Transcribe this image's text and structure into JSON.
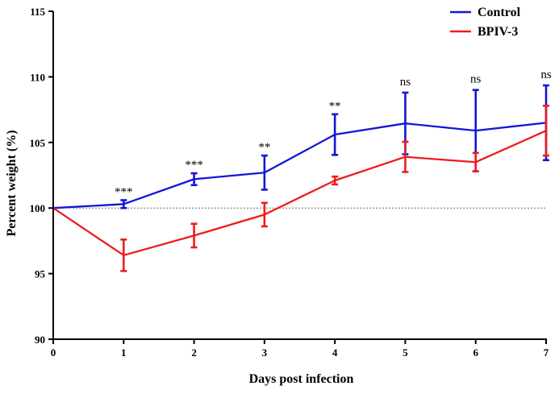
{
  "chart_data": {
    "type": "line",
    "title": "",
    "xlabel": "Days post infection",
    "ylabel": "Percent weight (%)",
    "xlim": [
      0,
      7
    ],
    "ylim": [
      90,
      115
    ],
    "xticks": [
      "0",
      "1",
      "2",
      "3",
      "4",
      "5",
      "6",
      "7"
    ],
    "yticks": [
      "90",
      "95",
      "100",
      "105",
      "110",
      "115"
    ],
    "x": [
      0,
      1,
      2,
      3,
      4,
      5,
      6,
      7
    ],
    "reference_line": 100,
    "legend_position": "top-right",
    "series": [
      {
        "name": "Control",
        "color": "#1515d6",
        "values": [
          100.0,
          100.3,
          102.2,
          102.7,
          105.6,
          106.45,
          105.9,
          106.5
        ],
        "errors": [
          0,
          0.3,
          0.45,
          1.3,
          1.55,
          2.35,
          3.1,
          2.85
        ]
      },
      {
        "name": "BPIV-3",
        "color": "#ee1c1c",
        "values": [
          100.0,
          96.4,
          97.9,
          99.5,
          102.1,
          103.9,
          103.5,
          105.9
        ],
        "errors": [
          0,
          1.2,
          0.9,
          0.9,
          0.3,
          1.15,
          0.7,
          1.9
        ]
      }
    ],
    "annotations": [
      {
        "x": 1,
        "label": "***"
      },
      {
        "x": 2,
        "label": "***"
      },
      {
        "x": 3,
        "label": "**"
      },
      {
        "x": 4,
        "label": "**"
      },
      {
        "x": 5,
        "label": "ns"
      },
      {
        "x": 6,
        "label": "ns"
      },
      {
        "x": 7,
        "label": "ns"
      }
    ]
  }
}
